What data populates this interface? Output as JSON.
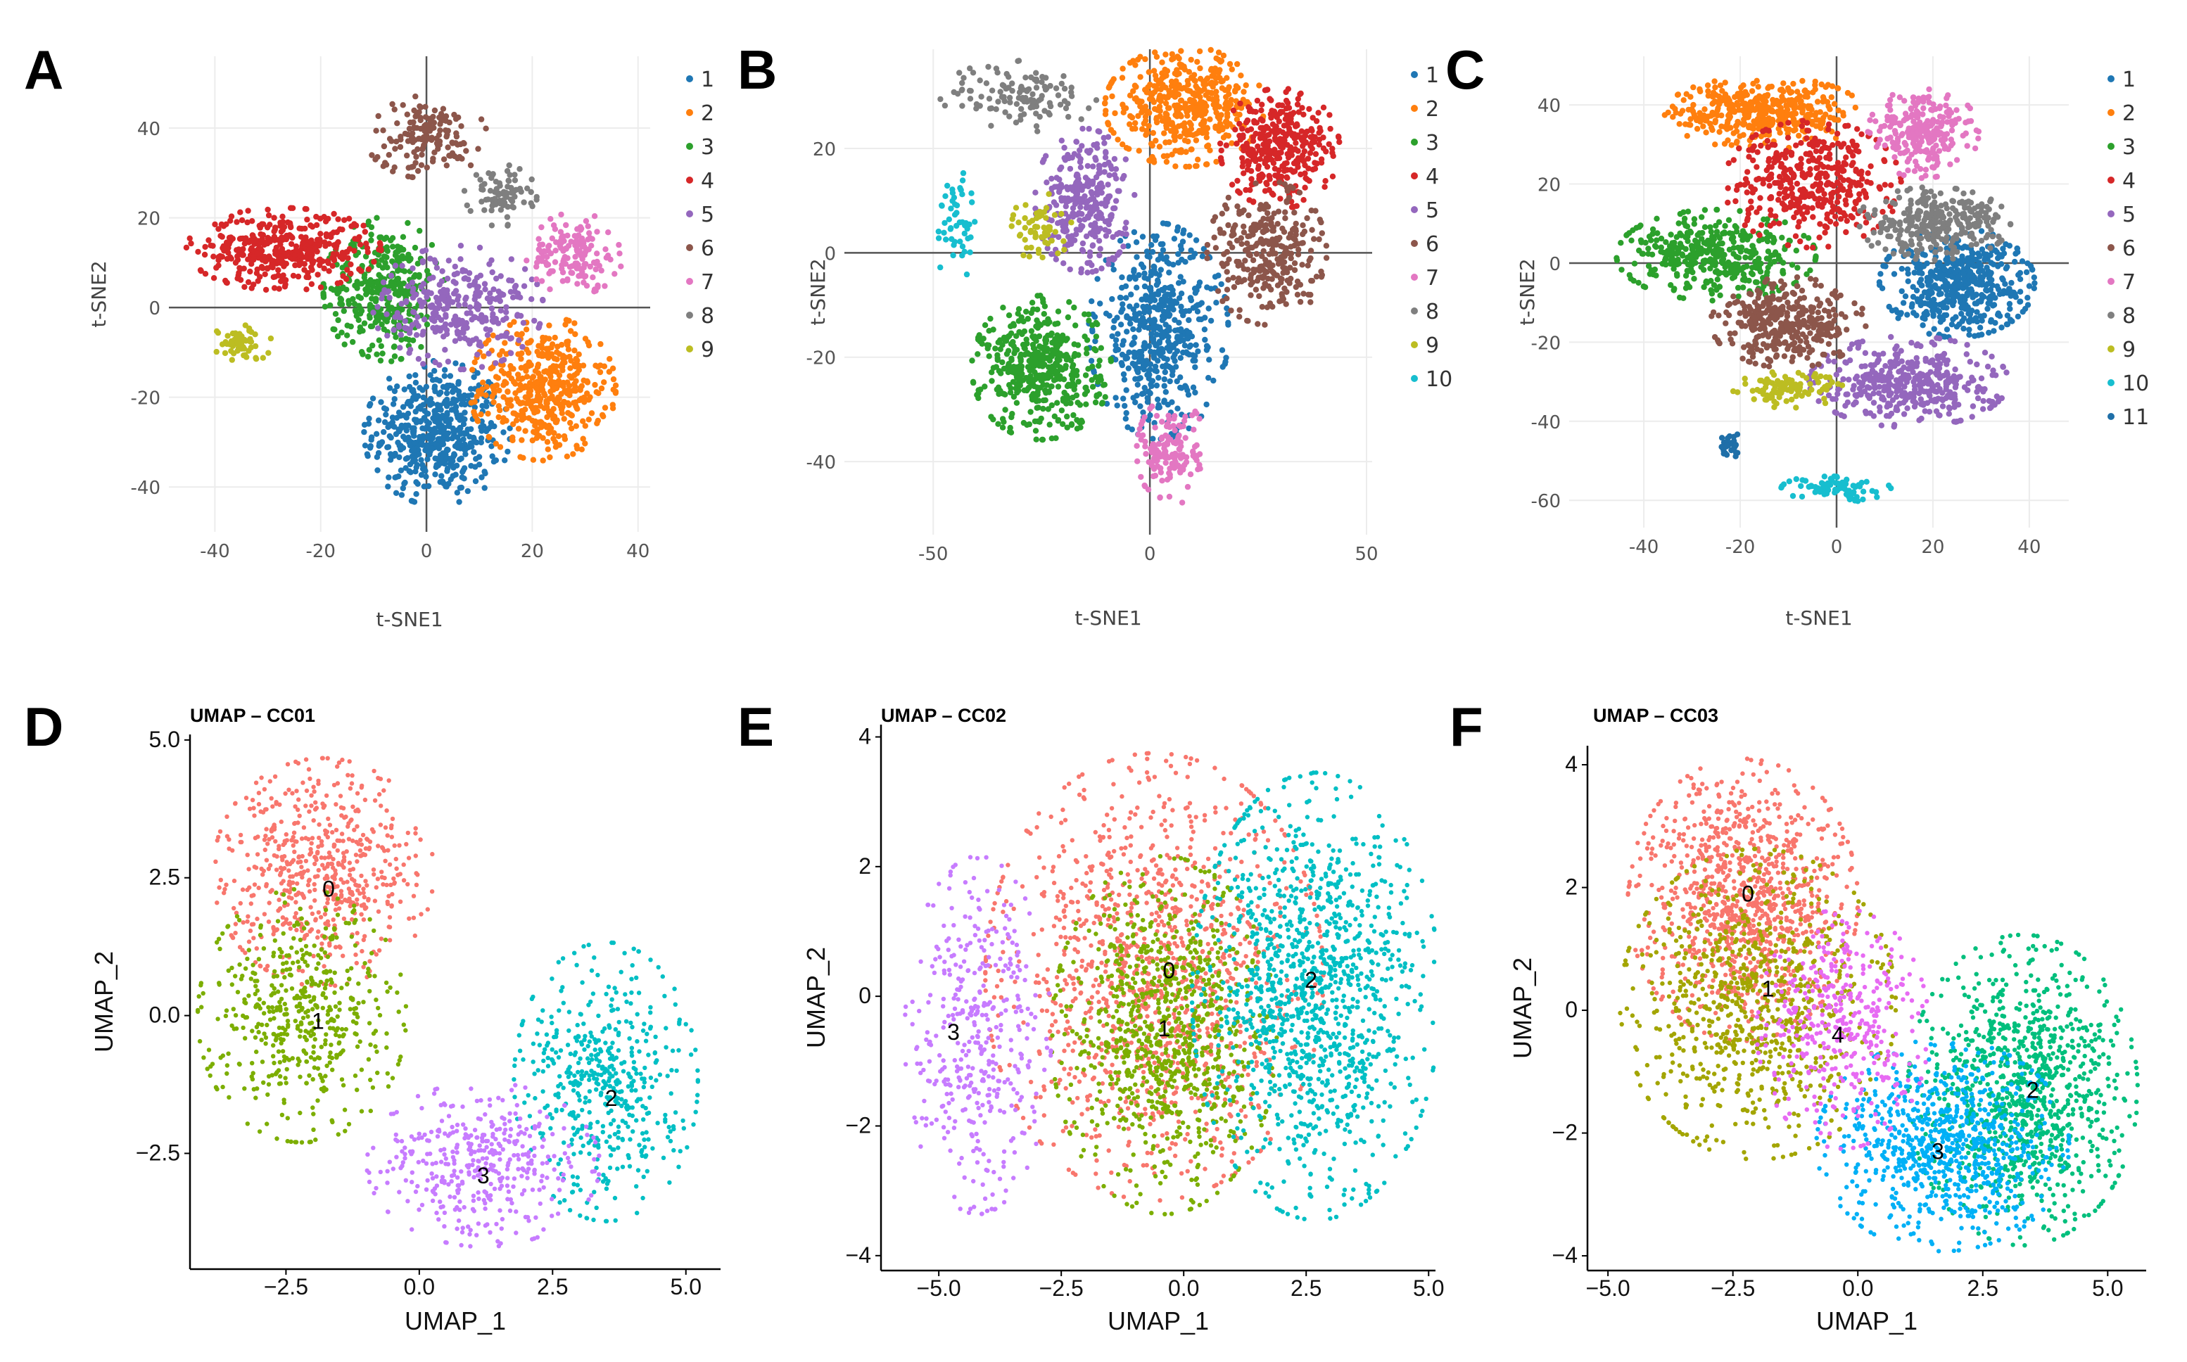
{
  "chart_data": [
    {
      "panel": "A",
      "type": "scatter",
      "title": "",
      "xlabel": "t-SNE1",
      "ylabel": "t-SNE2",
      "xlim": [
        -48.7,
        42.3
      ],
      "ylim": [
        -50,
        56
      ],
      "xticks": [
        -40,
        -20,
        0,
        20,
        40
      ],
      "xtick_labels": [
        "-40",
        "-20",
        "0",
        "20",
        "40"
      ],
      "yticks": [
        -40,
        -20,
        0,
        20,
        40
      ],
      "ytick_labels": [
        "-40",
        "-20",
        "0",
        "20",
        "40"
      ],
      "grid": true,
      "legend": "right",
      "clusters": [
        {
          "label": "1",
          "color": "#1f77b4",
          "center": [
            2,
            -28
          ],
          "spread": [
            6,
            7
          ],
          "n": 500
        },
        {
          "label": "2",
          "color": "#ff7f0e",
          "center": [
            22,
            -18
          ],
          "spread": [
            6,
            7
          ],
          "n": 450
        },
        {
          "label": "3",
          "color": "#2ca02c",
          "center": [
            -8,
            4
          ],
          "spread": [
            5,
            7
          ],
          "n": 350
        },
        {
          "label": "4",
          "color": "#d62728",
          "center": [
            -27,
            13
          ],
          "spread": [
            8,
            4
          ],
          "n": 400
        },
        {
          "label": "5",
          "color": "#9467bd",
          "center": [
            6,
            0
          ],
          "spread": [
            7,
            6
          ],
          "n": 300
        },
        {
          "label": "6",
          "color": "#8c564b",
          "center": [
            0,
            38
          ],
          "spread": [
            5,
            4
          ],
          "n": 150
        },
        {
          "label": "7",
          "color": "#e377c2",
          "center": [
            28,
            12
          ],
          "spread": [
            4,
            4
          ],
          "n": 150
        },
        {
          "label": "8",
          "color": "#7f7f7f",
          "center": [
            14,
            25
          ],
          "spread": [
            3,
            3
          ],
          "n": 80
        },
        {
          "label": "9",
          "color": "#bcbd22",
          "center": [
            -35,
            -8
          ],
          "spread": [
            2.5,
            2
          ],
          "n": 60
        }
      ]
    },
    {
      "panel": "B",
      "type": "scatter",
      "title": "",
      "xlabel": "t-SNE1",
      "ylabel": "t-SNE2",
      "xlim": [
        -70.5,
        51.3
      ],
      "ylim": [
        -54,
        39
      ],
      "xticks": [
        -50,
        0,
        50
      ],
      "xtick_labels": [
        "-50",
        "0",
        "50"
      ],
      "yticks": [
        -40,
        -20,
        0,
        20
      ],
      "ytick_labels": [
        "-40",
        "-20",
        "0",
        "20"
      ],
      "grid": true,
      "legend": "right",
      "clusters": [
        {
          "label": "1",
          "color": "#1f77b4",
          "center": [
            2,
            -15
          ],
          "spread": [
            7,
            9
          ],
          "n": 500
        },
        {
          "label": "2",
          "color": "#ff7f0e",
          "center": [
            8,
            28
          ],
          "spread": [
            8,
            5
          ],
          "n": 450
        },
        {
          "label": "3",
          "color": "#2ca02c",
          "center": [
            -25,
            -22
          ],
          "spread": [
            7,
            6
          ],
          "n": 450
        },
        {
          "label": "4",
          "color": "#d62728",
          "center": [
            30,
            20
          ],
          "spread": [
            6,
            5
          ],
          "n": 350
        },
        {
          "label": "5",
          "color": "#9467bd",
          "center": [
            -15,
            10
          ],
          "spread": [
            5,
            6
          ],
          "n": 300
        },
        {
          "label": "6",
          "color": "#8c564b",
          "center": [
            27,
            0
          ],
          "spread": [
            6,
            6
          ],
          "n": 300
        },
        {
          "label": "7",
          "color": "#e377c2",
          "center": [
            5,
            -38
          ],
          "spread": [
            3.5,
            4.5
          ],
          "n": 150
        },
        {
          "label": "8",
          "color": "#7f7f7f",
          "center": [
            -30,
            30
          ],
          "spread": [
            8,
            3
          ],
          "n": 120
        },
        {
          "label": "9",
          "color": "#bcbd22",
          "center": [
            -25,
            5
          ],
          "spread": [
            3,
            3
          ],
          "n": 60
        },
        {
          "label": "10",
          "color": "#17becf",
          "center": [
            -45,
            5
          ],
          "spread": [
            2,
            5
          ],
          "n": 50
        }
      ]
    },
    {
      "panel": "C",
      "type": "scatter",
      "title": "",
      "xlabel": "t-SNE1",
      "ylabel": "t-SNE2",
      "xlim": [
        -55.5,
        48.2
      ],
      "ylim": [
        -66.9,
        52.3
      ],
      "xticks": [
        -40,
        -20,
        0,
        20,
        40
      ],
      "xtick_labels": [
        "-40",
        "-20",
        "0",
        "20",
        "40"
      ],
      "yticks": [
        -60,
        -40,
        -20,
        0,
        20,
        40
      ],
      "ytick_labels": [
        "-60",
        "-40",
        "-20",
        "0",
        "20",
        "40"
      ],
      "grid": true,
      "legend": "right",
      "clusters": [
        {
          "label": "1",
          "color": "#1f77b4",
          "center": [
            25,
            -5
          ],
          "spread": [
            7,
            6
          ],
          "n": 500
        },
        {
          "label": "2",
          "color": "#ff7f0e",
          "center": [
            -15,
            38
          ],
          "spread": [
            9,
            4
          ],
          "n": 400
        },
        {
          "label": "3",
          "color": "#2ca02c",
          "center": [
            -25,
            2
          ],
          "spread": [
            9,
            5
          ],
          "n": 400
        },
        {
          "label": "4",
          "color": "#d62728",
          "center": [
            -5,
            20
          ],
          "spread": [
            8,
            7
          ],
          "n": 400
        },
        {
          "label": "5",
          "color": "#9467bd",
          "center": [
            15,
            -30
          ],
          "spread": [
            9,
            5
          ],
          "n": 400
        },
        {
          "label": "6",
          "color": "#8c564b",
          "center": [
            -10,
            -15
          ],
          "spread": [
            7,
            5
          ],
          "n": 350
        },
        {
          "label": "7",
          "color": "#e377c2",
          "center": [
            18,
            33
          ],
          "spread": [
            5,
            5
          ],
          "n": 250
        },
        {
          "label": "8",
          "color": "#7f7f7f",
          "center": [
            20,
            10
          ],
          "spread": [
            7,
            4
          ],
          "n": 300
        },
        {
          "label": "9",
          "color": "#bcbd22",
          "center": [
            -10,
            -32
          ],
          "spread": [
            5,
            2
          ],
          "n": 100
        },
        {
          "label": "10",
          "color": "#17becf",
          "center": [
            0,
            -57
          ],
          "spread": [
            5,
            1.5
          ],
          "n": 80
        },
        {
          "label": "11",
          "color": "#1f6fa8",
          "center": [
            -22,
            -46
          ],
          "spread": [
            1.2,
            1.5
          ],
          "n": 30
        }
      ]
    },
    {
      "panel": "D",
      "type": "scatter",
      "title": "UMAP – CC01",
      "xlabel": "UMAP_1",
      "ylabel": "UMAP_2",
      "xlim": [
        -4.3,
        5.65
      ],
      "ylim": [
        -4.6,
        5.1
      ],
      "xticks": [
        -2.5,
        0,
        2.5,
        5
      ],
      "xtick_labels": [
        "−2.5",
        "0.0",
        "2.5",
        "5.0"
      ],
      "yticks": [
        -2.5,
        0,
        2.5,
        5
      ],
      "ytick_labels": [
        "−2.5",
        "0.0",
        "2.5",
        "5.0"
      ],
      "grid": false,
      "legend": "none",
      "clusters": [
        {
          "label": "0",
          "color": "#F8766D",
          "center": [
            -1.8,
            2.6
          ],
          "spread": [
            0.9,
            0.9
          ],
          "n": 600,
          "label_pos": [
            -1.7,
            2.3
          ]
        },
        {
          "label": "1",
          "color": "#7CAE00",
          "center": [
            -2.2,
            0
          ],
          "spread": [
            0.85,
            1.0
          ],
          "n": 500,
          "label_pos": [
            -1.9,
            -0.1
          ]
        },
        {
          "label": "2",
          "color": "#00BFC4",
          "center": [
            3.5,
            -1.2
          ],
          "spread": [
            0.75,
            1.1
          ],
          "n": 500,
          "label_pos": [
            3.6,
            -1.5
          ]
        },
        {
          "label": "3",
          "color": "#C77CFF",
          "center": [
            1.2,
            -2.7
          ],
          "spread": [
            0.95,
            0.65
          ],
          "n": 400,
          "label_pos": [
            1.2,
            -2.9
          ]
        }
      ]
    },
    {
      "panel": "E",
      "type": "scatter",
      "title": "UMAP – CC02",
      "xlabel": "UMAP_1",
      "ylabel": "UMAP_2",
      "xlim": [
        -6.18,
        5.14
      ],
      "ylim": [
        -4.23,
        4.19
      ],
      "xticks": [
        -5,
        -2.5,
        0,
        2.5,
        5
      ],
      "xtick_labels": [
        "−5.0",
        "−2.5",
        "0.0",
        "2.5",
        "5.0"
      ],
      "yticks": [
        -4,
        -2,
        0,
        2,
        4
      ],
      "ytick_labels": [
        "−4",
        "−2",
        "0",
        "2",
        "4"
      ],
      "grid": false,
      "legend": "none",
      "clusters": [
        {
          "label": "0",
          "color": "#F8766D",
          "center": [
            -0.6,
            0.3
          ],
          "spread": [
            1.5,
            1.5
          ],
          "n": 1200,
          "label_pos": [
            -0.3,
            0.4
          ]
        },
        {
          "label": "1",
          "color": "#7CAE00",
          "center": [
            -0.4,
            -0.6
          ],
          "spread": [
            1.0,
            1.2
          ],
          "n": 900,
          "label_pos": [
            -0.4,
            -0.5
          ]
        },
        {
          "label": "2",
          "color": "#00BFC4",
          "center": [
            2.7,
            0
          ],
          "spread": [
            1.1,
            1.5
          ],
          "n": 1200,
          "label_pos": [
            2.6,
            0.25
          ]
        },
        {
          "label": "3",
          "color": "#C77CFF",
          "center": [
            -4.2,
            -0.6
          ],
          "spread": [
            0.65,
            1.2
          ],
          "n": 400,
          "label_pos": [
            -4.7,
            -0.55
          ]
        }
      ]
    },
    {
      "panel": "F",
      "type": "scatter",
      "title": "UMAP – CC03",
      "xlabel": "UMAP_1",
      "ylabel": "UMAP_2",
      "xlim": [
        -5.41,
        5.77
      ],
      "ylim": [
        -4.24,
        4.31
      ],
      "xticks": [
        -5,
        -2.5,
        0,
        2.5,
        5
      ],
      "xtick_labels": [
        "−5.0",
        "−2.5",
        "0.0",
        "2.5",
        "5.0"
      ],
      "yticks": [
        -4,
        -2,
        0,
        2,
        4
      ],
      "ytick_labels": [
        "−4",
        "−2",
        "0",
        "2",
        "4"
      ],
      "grid": false,
      "legend": "none",
      "clusters": [
        {
          "label": "0",
          "color": "#F8766D",
          "center": [
            -2.3,
            1.8
          ],
          "spread": [
            1.0,
            1.0
          ],
          "n": 1000,
          "label_pos": [
            -2.2,
            1.9
          ]
        },
        {
          "label": "1",
          "color": "#A3A500",
          "center": [
            -2.0,
            0.1
          ],
          "spread": [
            1.2,
            1.1
          ],
          "n": 800,
          "label_pos": [
            -1.8,
            0.35
          ]
        },
        {
          "label": "2",
          "color": "#00BF7D",
          "center": [
            3.3,
            -1.3
          ],
          "spread": [
            1.0,
            1.1
          ],
          "n": 1000,
          "label_pos": [
            3.5,
            -1.3
          ]
        },
        {
          "label": "3",
          "color": "#00B0F6",
          "center": [
            1.7,
            -2.2
          ],
          "spread": [
            1.1,
            0.75
          ],
          "n": 800,
          "label_pos": [
            1.6,
            -2.3
          ]
        },
        {
          "label": "4",
          "color": "#E76BF3",
          "center": [
            -0.3,
            -0.3
          ],
          "spread": [
            0.75,
            0.85
          ],
          "n": 400,
          "label_pos": [
            -0.4,
            -0.4
          ]
        }
      ]
    }
  ]
}
